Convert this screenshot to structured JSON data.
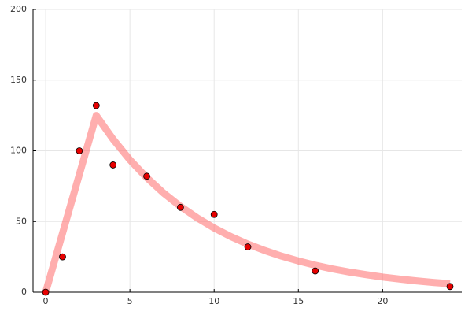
{
  "chart_data": {
    "type": "scatter",
    "xlim": [
      -0.75,
      24.7
    ],
    "ylim": [
      0,
      200
    ],
    "xticks": [
      0,
      5,
      10,
      15,
      20
    ],
    "yticks": [
      0,
      50,
      100,
      150,
      200
    ],
    "grid": true,
    "series": [
      {
        "mode": "line",
        "color": "#ff6b6b",
        "x": [
          0,
          1,
          2,
          3,
          4,
          5,
          6,
          7,
          8,
          9,
          10,
          11,
          12,
          13,
          14,
          15,
          16,
          17,
          18,
          19,
          20,
          21,
          22,
          23,
          24
        ],
        "values": [
          0,
          41.7,
          83.3,
          125,
          108.2,
          93.6,
          81,
          70.1,
          60.7,
          52.5,
          45.4,
          39.3,
          34,
          29.5,
          25.5,
          22.1,
          19.1,
          16.5,
          14.3,
          12.4,
          10.7,
          9.3,
          8,
          6.9,
          6
        ]
      },
      {
        "mode": "markers",
        "color": "#e60000",
        "x": [
          0,
          1,
          2,
          3,
          4,
          6,
          8,
          10,
          12,
          16,
          24
        ],
        "values": [
          0,
          25,
          100,
          132,
          90,
          82,
          60,
          55,
          32,
          15,
          4
        ]
      }
    ]
  }
}
